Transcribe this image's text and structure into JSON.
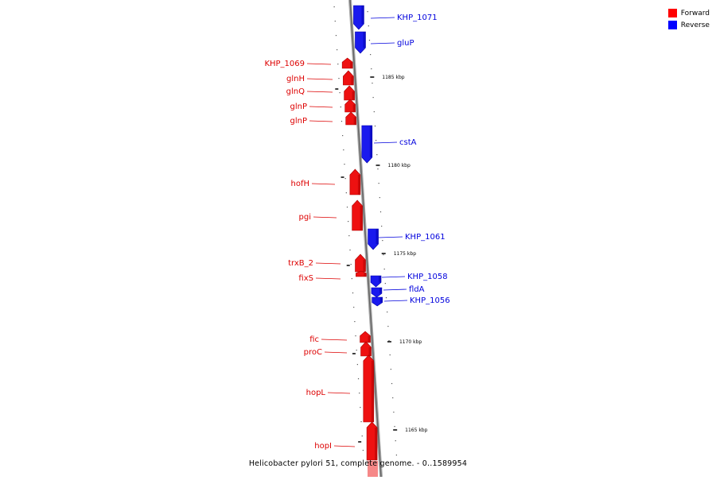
{
  "legend": {
    "forward_label": "Forward",
    "reverse_label": "Reverse",
    "forward_color": "#ff0000",
    "reverse_color": "#0000ff"
  },
  "footer": {
    "caption": "Helicobacter pylori 51, complete genome. - 0..1589954"
  },
  "ticks": [
    {
      "label": "1185 kbp"
    },
    {
      "label": "1180 kbp"
    },
    {
      "label": "1175 kbp"
    },
    {
      "label": "1170 kbp"
    },
    {
      "label": "1165 kbp"
    }
  ],
  "genes": [
    {
      "name": "KHP_1071",
      "strand": "reverse"
    },
    {
      "name": "gluP",
      "strand": "reverse"
    },
    {
      "name": "KHP_1069",
      "strand": "forward"
    },
    {
      "name": "glnH",
      "strand": "forward"
    },
    {
      "name": "glnQ",
      "strand": "forward"
    },
    {
      "name": "glnP",
      "strand": "forward"
    },
    {
      "name": "glnP",
      "strand": "forward"
    },
    {
      "name": "cstA",
      "strand": "reverse"
    },
    {
      "name": "hofH",
      "strand": "forward"
    },
    {
      "name": "pgi",
      "strand": "forward"
    },
    {
      "name": "KHP_1061",
      "strand": "reverse"
    },
    {
      "name": "trxB_2",
      "strand": "forward"
    },
    {
      "name": "fixS",
      "strand": "forward"
    },
    {
      "name": "KHP_1058",
      "strand": "reverse"
    },
    {
      "name": "fldA",
      "strand": "reverse"
    },
    {
      "name": "KHP_1056",
      "strand": "reverse"
    },
    {
      "name": "fic",
      "strand": "forward"
    },
    {
      "name": "proC",
      "strand": "forward"
    },
    {
      "name": "hopL",
      "strand": "forward"
    },
    {
      "name": "hopI",
      "strand": "forward"
    }
  ]
}
